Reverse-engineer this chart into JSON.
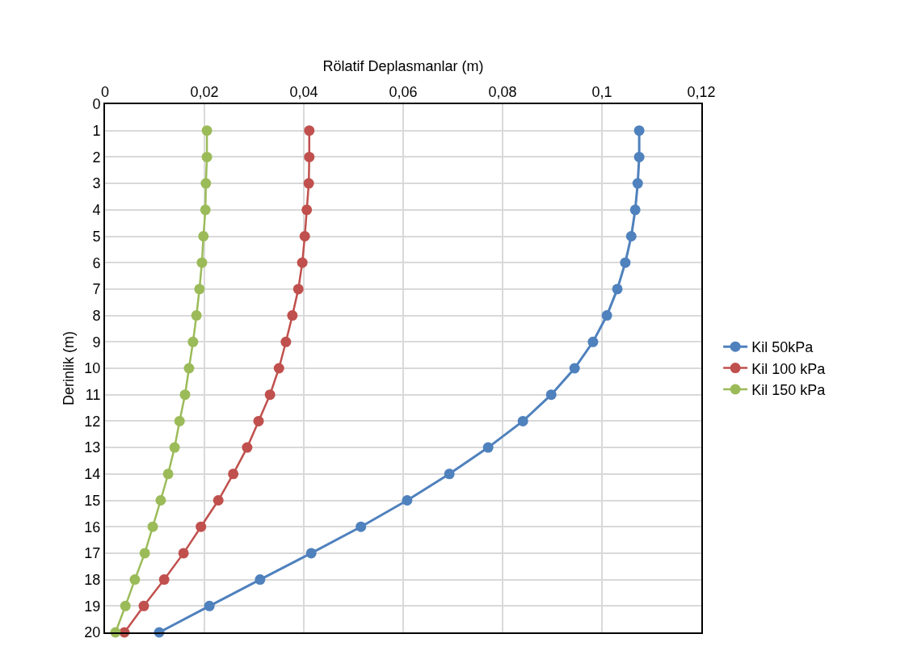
{
  "chart_data": {
    "type": "line",
    "orientation": "horizontal",
    "xlabel": "Rölatif Deplasmanlar (m)",
    "ylabel": "Derinlik (m)",
    "x": [
      1,
      2,
      3,
      4,
      5,
      6,
      7,
      8,
      9,
      10,
      11,
      12,
      13,
      14,
      15,
      16,
      17,
      18,
      19,
      20
    ],
    "series": [
      {
        "name": "Kil 50kPa",
        "color": "#4f81bd",
        "values": [
          0.1075,
          0.1075,
          0.1072,
          0.1067,
          0.1059,
          0.1047,
          0.1031,
          0.101,
          0.0982,
          0.0945,
          0.0898,
          0.0841,
          0.0771,
          0.0693,
          0.0608,
          0.0515,
          0.0415,
          0.0312,
          0.021,
          0.0109
        ]
      },
      {
        "name": "Kil 100 kPa",
        "color": "#c0504d",
        "values": [
          0.0411,
          0.0411,
          0.041,
          0.0406,
          0.0402,
          0.0397,
          0.0389,
          0.0377,
          0.0364,
          0.035,
          0.0332,
          0.0309,
          0.0286,
          0.0258,
          0.0228,
          0.0193,
          0.0158,
          0.0119,
          0.0078,
          0.0039
        ]
      },
      {
        "name": "Kil 150 kPa",
        "color": "#9bbb59",
        "values": [
          0.0205,
          0.0205,
          0.0203,
          0.0202,
          0.0198,
          0.0195,
          0.019,
          0.0184,
          0.0177,
          0.0169,
          0.0161,
          0.015,
          0.014,
          0.0127,
          0.0112,
          0.0096,
          0.008,
          0.006,
          0.0041,
          0.0021
        ]
      }
    ],
    "xlim": [
      0,
      0.12
    ],
    "xticks": [
      0,
      {
        "value": 0.02,
        "label": "0,02"
      },
      {
        "value": 0.04,
        "label": "0,04"
      },
      {
        "value": 0.06,
        "label": "0,06"
      },
      {
        "value": 0.08,
        "label": "0,08"
      },
      {
        "value": 0.1,
        "label": "0,1"
      },
      {
        "value": 0.12,
        "label": "0,12"
      }
    ],
    "ylim": [
      20,
      0
    ],
    "yticks": [
      0,
      1,
      2,
      3,
      4,
      5,
      6,
      7,
      8,
      9,
      10,
      11,
      12,
      13,
      14,
      15,
      16,
      17,
      18,
      19,
      20
    ],
    "grid": true,
    "legend": "right",
    "marker": "circle",
    "line_style": "solid"
  }
}
